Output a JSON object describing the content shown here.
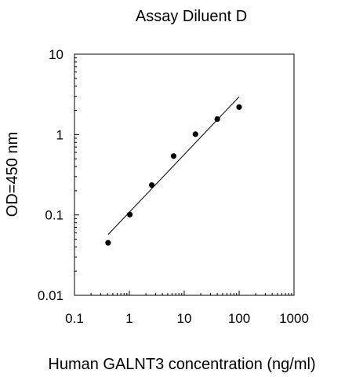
{
  "chart_data": {
    "type": "scatter",
    "title": "Assay Diluent D",
    "xlabel": "Human GALNT3 concentration (ng/ml)",
    "ylabel": "OD=450 nm",
    "x_scale": "log",
    "y_scale": "log",
    "xlim": [
      0.1,
      1000
    ],
    "ylim": [
      0.01,
      10
    ],
    "x_ticks": [
      0.1,
      1,
      10,
      100,
      1000
    ],
    "x_tick_labels": [
      "0.1",
      "1",
      "10",
      "100",
      "1000"
    ],
    "y_ticks": [
      0.01,
      0.1,
      1,
      10
    ],
    "y_tick_labels": [
      "0.01",
      "0.1",
      "1",
      "10"
    ],
    "grid": false,
    "legend": false,
    "series": [
      {
        "marker": "circle",
        "color": "#000000",
        "x": [
          0.41,
          1.02,
          2.56,
          6.4,
          16,
          40,
          100
        ],
        "y": [
          0.045,
          0.101,
          0.235,
          0.54,
          1.01,
          1.56,
          2.2
        ]
      }
    ],
    "fit_line": {
      "color": "#000000",
      "x": [
        0.41,
        100
      ],
      "y": [
        0.057,
        2.95
      ]
    }
  }
}
